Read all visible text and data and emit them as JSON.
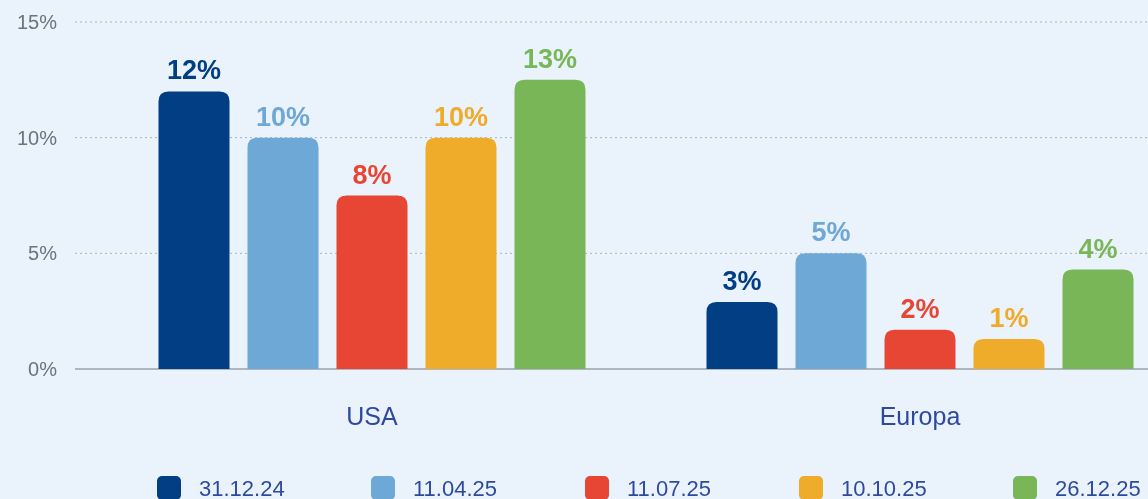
{
  "chart_data": {
    "type": "bar",
    "categories": [
      "USA",
      "Europa"
    ],
    "series": [
      {
        "name": "31.12.24",
        "color": "#023e84",
        "values": [
          12,
          2.9
        ],
        "value_labels": [
          "12%",
          "3%"
        ]
      },
      {
        "name": "11.04.25",
        "color": "#6ea8d6",
        "values": [
          10,
          5
        ],
        "value_labels": [
          "10%",
          "5%"
        ]
      },
      {
        "name": "11.07.25",
        "color": "#e84634",
        "values": [
          7.5,
          1.7
        ],
        "value_labels": [
          "8%",
          "2%"
        ]
      },
      {
        "name": "10.10.25",
        "color": "#efab2a",
        "values": [
          10,
          1.3
        ],
        "value_labels": [
          "10%",
          "1%"
        ]
      },
      {
        "name": "26.12.25",
        "color": "#78b657",
        "values": [
          12.5,
          4.3
        ],
        "value_labels": [
          "13%",
          "4%"
        ]
      }
    ],
    "ylim": [
      0,
      15
    ],
    "yticks": [
      {
        "value": 0,
        "label": "0%"
      },
      {
        "value": 5,
        "label": "5%"
      },
      {
        "value": 10,
        "label": "10%"
      },
      {
        "value": 15,
        "label": "15%"
      }
    ],
    "grid": "y",
    "legend": "bottom"
  }
}
